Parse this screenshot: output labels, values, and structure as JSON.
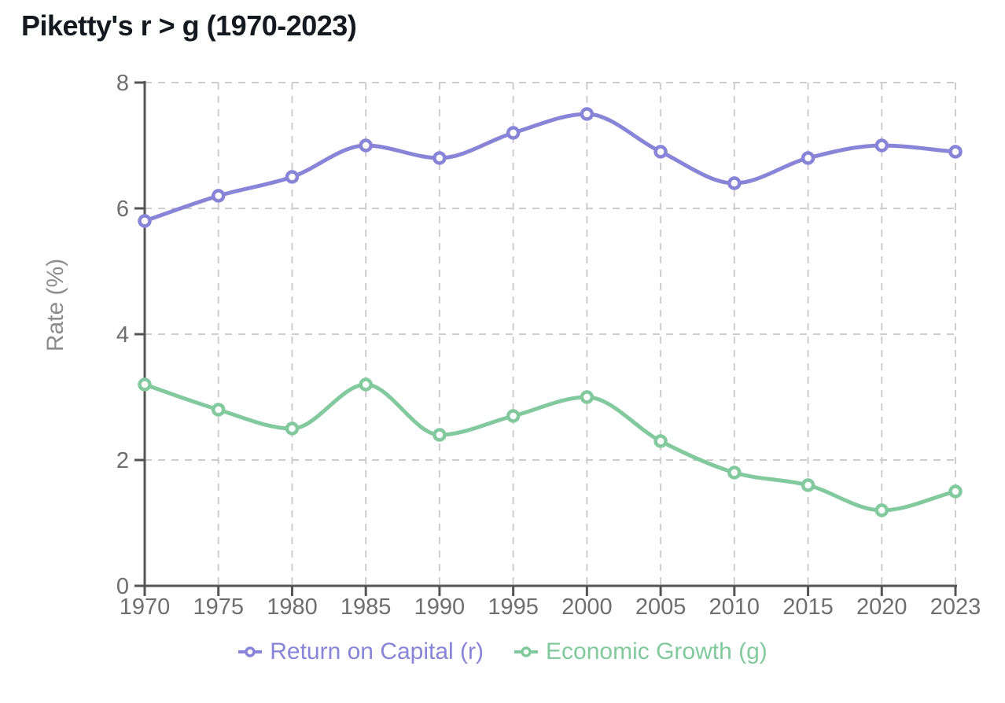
{
  "chart_data": {
    "type": "line",
    "title": "Piketty's r > g (1970-2023)",
    "x": [
      "1970",
      "1975",
      "1980",
      "1985",
      "1990",
      "1995",
      "2000",
      "2005",
      "2010",
      "2015",
      "2020",
      "2023"
    ],
    "series": [
      {
        "name": "Return on Capital (r)",
        "color": "#8884d8",
        "values": [
          5.8,
          6.2,
          6.5,
          7.0,
          6.8,
          7.2,
          7.5,
          6.9,
          6.4,
          6.8,
          7.0,
          6.9
        ]
      },
      {
        "name": "Economic Growth (g)",
        "color": "#82ca9d",
        "values": [
          3.2,
          2.8,
          2.5,
          3.2,
          2.4,
          2.7,
          3.0,
          2.3,
          1.8,
          1.6,
          1.2,
          1.5
        ]
      }
    ],
    "xlabel": "",
    "ylabel": "Rate (%)",
    "ylim": [
      0,
      8
    ],
    "yticks": [
      0,
      2,
      4,
      6,
      8
    ],
    "grid": true,
    "grid_style": "dashed",
    "curve": "monotone",
    "legend_position": "bottom",
    "marker": "open-circle",
    "axis_color": "#555555",
    "tick_label_color": "#6e6e6e",
    "axis_label_color": "#8c8c8c",
    "grid_color": "#cdcdcd",
    "background_color": "#ffffff"
  }
}
